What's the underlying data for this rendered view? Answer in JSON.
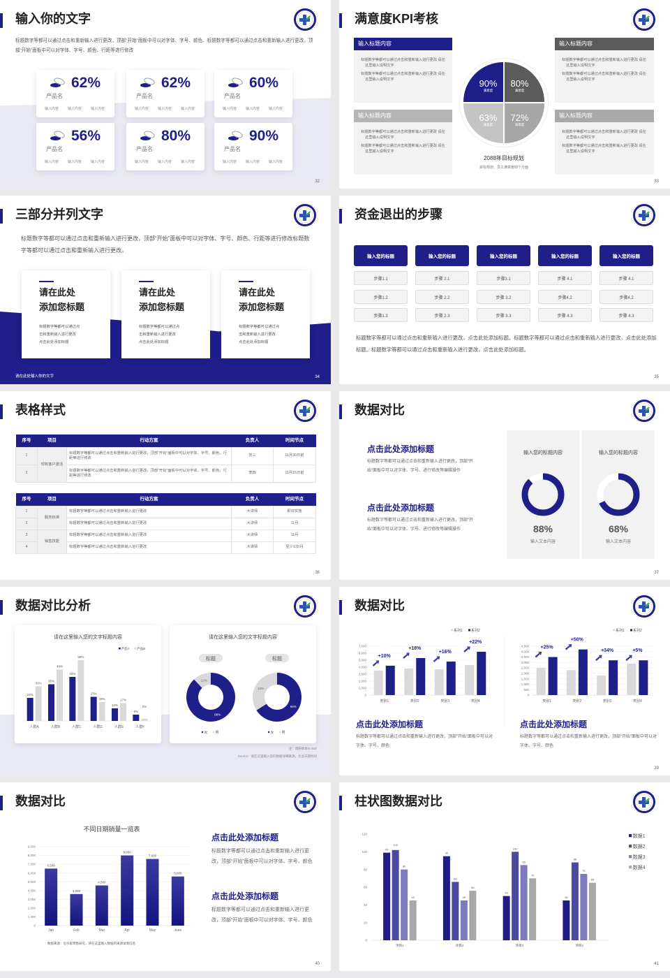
{
  "colors": {
    "navy": "#1f1f8a",
    "dark_gray": "#5b5b5b",
    "mid_gray": "#a6a6a6",
    "light_gray": "#c4c4c4",
    "lavender": "#e9e9f3"
  },
  "slides": [
    {
      "title": "输入你的文字",
      "page": "32",
      "desc": "标题数字等都可以通过点击和重新输入进行更改，顶部“开始”面板中可以对字体、字号、颜色、标题数字等都可以通过点击和重新输入进行更改，顶部“开始”面板中可以对字体、字号、颜色、行距等进行修改",
      "cards": [
        {
          "value": "62%",
          "name": "产品名",
          "items": [
            "输入内容",
            "输入内容",
            "输入内容"
          ]
        },
        {
          "value": "62%",
          "name": "产品名",
          "items": [
            "输入内容",
            "输入内容",
            "输入内容"
          ]
        },
        {
          "value": "60%",
          "name": "产品名",
          "items": [
            "输入内容",
            "输入内容",
            "输入内容"
          ]
        },
        {
          "value": "56%",
          "name": "产品名",
          "items": [
            "输入内容",
            "输入内容",
            "输入内容"
          ]
        },
        {
          "value": "80%",
          "name": "产品名",
          "items": [
            "输入内容",
            "输入内容",
            "输入内容"
          ]
        },
        {
          "value": "90%",
          "name": "产品名",
          "items": [
            "输入内容",
            "输入内容",
            "输入内容"
          ]
        }
      ]
    },
    {
      "title": "满意度KPI考核",
      "page": "33",
      "boxes": [
        {
          "header": "输入标题内容",
          "bullets": [
            "标题数字等都可以通过点击和重新输入进行更改 请在这里输入说明文字",
            "标题数字等都可以通过点击和重新输入进行更改 请在这里输入说明文字"
          ]
        },
        {
          "header": "输入标题内容",
          "bullets": [
            "标题数字等都可以通过点击和重新输入进行更改 请在这里输入说明文字",
            "标题数字等都可以通过点击和重新输入进行更改 请在这里输入说明文字"
          ]
        },
        {
          "header": "输入标题内容",
          "bullets": [
            "标题数字等都可以通过点击和重新输入进行更改 请在这里输入说明文字",
            "标题数字等都可以通过点击和重新输入进行更改 请在这里输入说明文字"
          ]
        },
        {
          "header": "输入标题内容",
          "bullets": [
            "标题数字等都可以通过点击和重新输入进行更改 请在这里输入说明文字",
            "标题数字等都可以通过点击和重新输入进行更改 请在这里输入说明文字"
          ]
        }
      ],
      "quadrants": [
        {
          "value": "90%",
          "label": "满意度"
        },
        {
          "value": "80%",
          "label": "满意度"
        },
        {
          "value": "63%",
          "label": "满意度"
        },
        {
          "value": "72%",
          "label": "满意度"
        }
      ],
      "goal": "2088年目标规划",
      "goal_sub": "目标规划：员工满意度四个方面"
    },
    {
      "title": "三部分并列文字",
      "page": "34",
      "desc": "标题数字等都可以通过点击和重新输入进行更改，顶部“开始”面板中可以对字体、字号、颜色、行距等进行修改标题数字等都可以通过点击和重新输入进行更改。",
      "cards": [
        {
          "title1": "请在此处",
          "title2": "添加您标题",
          "body": [
            "标题数字等都可以通过点",
            "击和重新输入进行更改",
            "点击此处添加标题"
          ]
        },
        {
          "title1": "请在此处",
          "title2": "添加您标题",
          "body": [
            "标题数字等都可以通过点",
            "击和重新输入进行更改",
            "点击此处添加标题"
          ]
        },
        {
          "title1": "请在此处",
          "title2": "添加您标题",
          "body": [
            "标题数字等都可以通过点",
            "击和重新输入进行更改",
            "点击此处添加标题"
          ]
        }
      ],
      "footer": "请在此处输入你的文字"
    },
    {
      "title": "资金退出的步骤",
      "page": "35",
      "columns": [
        {
          "header": "输入您的标题",
          "steps": [
            "步骤1.1",
            "步骤1.2",
            "步骤1.3"
          ]
        },
        {
          "header": "输入您的标题",
          "steps": [
            "步骤 2.1",
            "步骤 2.2",
            "步骤 2.3"
          ]
        },
        {
          "header": "输入您的标题",
          "steps": [
            "步骤3.1",
            "步骤 3.2",
            "步骤 3.3"
          ]
        },
        {
          "header": "输入您的标题",
          "steps": [
            "步骤 4.1",
            "步骤4.2",
            "步骤 4.3"
          ]
        },
        {
          "header": "输入您的标题",
          "steps": [
            "步骤 4.1",
            "步骤4.2",
            "步骤 4.3"
          ]
        }
      ],
      "desc": "标题数字等都可以通过点击和重新输入进行更改，点击此处添加标题。标题数字等都可以通过点击和重新输入进行更改，点击此处添加标题。标题数字等都可以通过点击和重新输入进行更改，点击此处添加标题。"
    },
    {
      "title": "表格样式",
      "page": "36",
      "headers": [
        "序号",
        "项目",
        "行动方案",
        "负责人",
        "时间节点"
      ],
      "table1": {
        "groups": [
          {
            "name": "现有客户激活",
            "rows": [
              {
                "no": "1",
                "plan": "标题数字等都可以通过点击和重新输入进行更改，顶部“开始”面板中可以对字体、字号、颜色、行距等进行修改",
                "owner": "张三",
                "time": "11月30日前"
              },
              {
                "no": "2",
                "plan": "标题数字等都可以通过点击和重新输入进行更改，顶部“开始”面板中可以对字体、字号、颜色、行距等进行修改",
                "owner": "李四",
                "time": "11月15日前"
              }
            ]
          }
        ]
      },
      "table2": {
        "groups": [
          {
            "name": "服务标准",
            "rows": [
              {
                "no": "1",
                "plan": "标题数字等都可以通过点击和重新输入进行更改",
                "owner": "大讲师",
                "time": "即日实施"
              },
              {
                "no": "2",
                "plan": "标题数字等都可以通过点击和重新输入进行更改",
                "owner": "大讲师",
                "time": "11月"
              }
            ]
          },
          {
            "name": "销售技能",
            "rows": [
              {
                "no": "3",
                "plan": "标题数字等都可以通过点击和重新输入进行更改",
                "owner": "大讲师",
                "time": "11月"
              },
              {
                "no": "4",
                "plan": "标题数字等都可以通过点击和重新输入进行更改",
                "owner": "大讲师",
                "time": "至少1次/月"
              }
            ]
          }
        ]
      }
    },
    {
      "title": "数据对比",
      "page": "37",
      "blocks": [
        {
          "heading": "点击此处添加标题",
          "body": "标题数字等都可以通过点击和重新输入进行更改，顶部“开始”面板中可以对字体、字号、进行修改等编辑操作"
        },
        {
          "heading": "点击此处添加标题",
          "body": "标题数字等都可以通过点击和重新输入进行更改，顶部“开始”面板中可以对字体、字号、进行修改等编辑操作"
        }
      ],
      "rings": [
        {
          "title": "输入您的标题内容",
          "percent": 88,
          "value": "88%",
          "label": "输入文本内容"
        },
        {
          "title": "输入您的标题内容",
          "percent": 68,
          "value": "68%",
          "label": "输入文本内容"
        }
      ]
    },
    {
      "title": "数据对比分析",
      "page": "38",
      "note": "注：调研样本N=500",
      "source": "Source：请在这里输入您的数据详细来源，包含日期时间"
    },
    {
      "title": "数据对比",
      "page": "39",
      "blocks": [
        {
          "heading": "点击此处添加标题",
          "body": "标题数字等都可以通过点击和重新输入进行更改，顶部“开始”面板中可以对字体、字号、颜色"
        },
        {
          "heading": "点击此处添加标题",
          "body": "标题数字等都可以通过点击和重新输入进行更改，顶部“开始”面板中可以对字体、字号、颜色"
        }
      ]
    },
    {
      "title": "数据对比",
      "page": "40",
      "source": "数据来源：尼尔森零售研究，请在这里输入数据的来源详情信息",
      "blocks": [
        {
          "heading": "点击此处添加标题",
          "body": "标题数字等都可以通过点击和重新输入进行更改，顶部“开始”面板中可以对字体、字号、颜色"
        },
        {
          "heading": "点击此处添加标题",
          "body": "标题数字等都可以通过点击和重新输入进行更改，顶部“开始”面板中可以对字体、字号、颜色"
        }
      ]
    },
    {
      "title": "柱状图数据对比",
      "page": "41"
    }
  ],
  "chart_data": [
    {
      "type": "bar",
      "title": "请在这里输入您的文字标题内容",
      "categories": [
        "人群A",
        "人群B",
        "人群C",
        "人群D",
        "人群E",
        "人群F"
      ],
      "series": [
        {
          "name": "产品A",
          "color": "#1f1f8a",
          "values": [
            22,
            35,
            42,
            23,
            12,
            6
          ],
          "labels": [
            "22%",
            "35%",
            "42%",
            "23%",
            "12%",
            "6%"
          ]
        },
        {
          "name": "产品B",
          "color": "#d9d9d9",
          "values": [
            33,
            49,
            58,
            18,
            17,
            2
          ],
          "labels": [
            "33%",
            "49%",
            "58%",
            "18%",
            "17%",
            "2%"
          ]
        }
      ],
      "legend": "top-right"
    },
    {
      "type": "pie",
      "title": "标题",
      "slices": [
        {
          "label": "女",
          "value": 88,
          "text": "88%",
          "color": "#1f1f8a"
        },
        {
          "label": "男",
          "value": 12,
          "text": "12%",
          "color": "#d9d9d9"
        }
      ]
    },
    {
      "type": "pie",
      "title": "标题",
      "slices": [
        {
          "label": "女",
          "value": 66,
          "text": "66%",
          "color": "#1f1f8a"
        },
        {
          "label": "男",
          "value": 34,
          "text": "34%",
          "color": "#d9d9d9"
        }
      ]
    },
    {
      "type": "bar",
      "categories": [
        "类别1",
        "类别2",
        "类别3",
        "类别4"
      ],
      "ylim": [
        0,
        7000
      ],
      "yticks": [
        "0",
        "1,000",
        "2,000",
        "3,000",
        "4,000",
        "5,000",
        "6,000",
        "7,000"
      ],
      "series": [
        {
          "name": "系列1",
          "color": "#d9d9d9",
          "values": [
            3500,
            3800,
            3700,
            4300
          ]
        },
        {
          "name": "系列2",
          "color": "#1f1f8a",
          "values": [
            4200,
            5300,
            4800,
            6200
          ]
        }
      ],
      "annotations": [
        "+10%",
        "+18%",
        "+16%",
        "+22%"
      ],
      "legend": "top-right"
    },
    {
      "type": "bar",
      "categories": [
        "类别1",
        "类别2",
        "类别3",
        "类别4"
      ],
      "ylim": [
        0,
        4500
      ],
      "yticks": [
        "0",
        "500",
        "1,000",
        "1,500",
        "2,000",
        "2,500",
        "3,000",
        "3,500",
        "4,000",
        "4,500"
      ],
      "series": [
        {
          "name": "系列1",
          "color": "#d9d9d9",
          "values": [
            2500,
            2300,
            1800,
            2900
          ]
        },
        {
          "name": "系列2",
          "color": "#1f1f8a",
          "values": [
            3500,
            4200,
            3200,
            3200
          ]
        }
      ],
      "annotations": [
        "+25%",
        "+50%",
        "+34%",
        "+5%"
      ],
      "legend": "top-right"
    },
    {
      "type": "bar",
      "title": "不同日期销量一览表",
      "categories": [
        "Jan",
        "Feb",
        "Mar",
        "Apr",
        "May",
        "June"
      ],
      "ylim": [
        0,
        9000
      ],
      "yticks": [
        "0",
        "1,000",
        "2,000",
        "3,000",
        "4,000",
        "5,000",
        "6,000",
        "7,000",
        "8,000",
        "9,000"
      ],
      "series": [
        {
          "color": "#1f1f8a",
          "values": [
            6500,
            3600,
            4580,
            8000,
            7600,
            5600
          ],
          "labels": [
            "6,500",
            "3,600",
            "4,580",
            "8,000",
            "7,600",
            "5,600"
          ]
        }
      ]
    },
    {
      "type": "bar",
      "categories": [
        "项目1",
        "项目2",
        "项目3",
        "项目4"
      ],
      "ylim": [
        0,
        120
      ],
      "yticks": [
        "0",
        "20",
        "40",
        "60",
        "80",
        "100",
        "120"
      ],
      "series": [
        {
          "name": "数据1",
          "color": "#1f1c86",
          "values": [
            99,
            95,
            50,
            45
          ]
        },
        {
          "name": "数据2",
          "color": "#4a4a9e",
          "values": [
            102,
            66,
            100,
            88
          ]
        },
        {
          "name": "数据3",
          "color": "#7d7abd",
          "values": [
            80,
            45,
            85,
            75
          ]
        },
        {
          "name": "数据4",
          "color": "#a8a8a8",
          "values": [
            45,
            56,
            70,
            65
          ]
        }
      ],
      "legend": "right"
    }
  ]
}
